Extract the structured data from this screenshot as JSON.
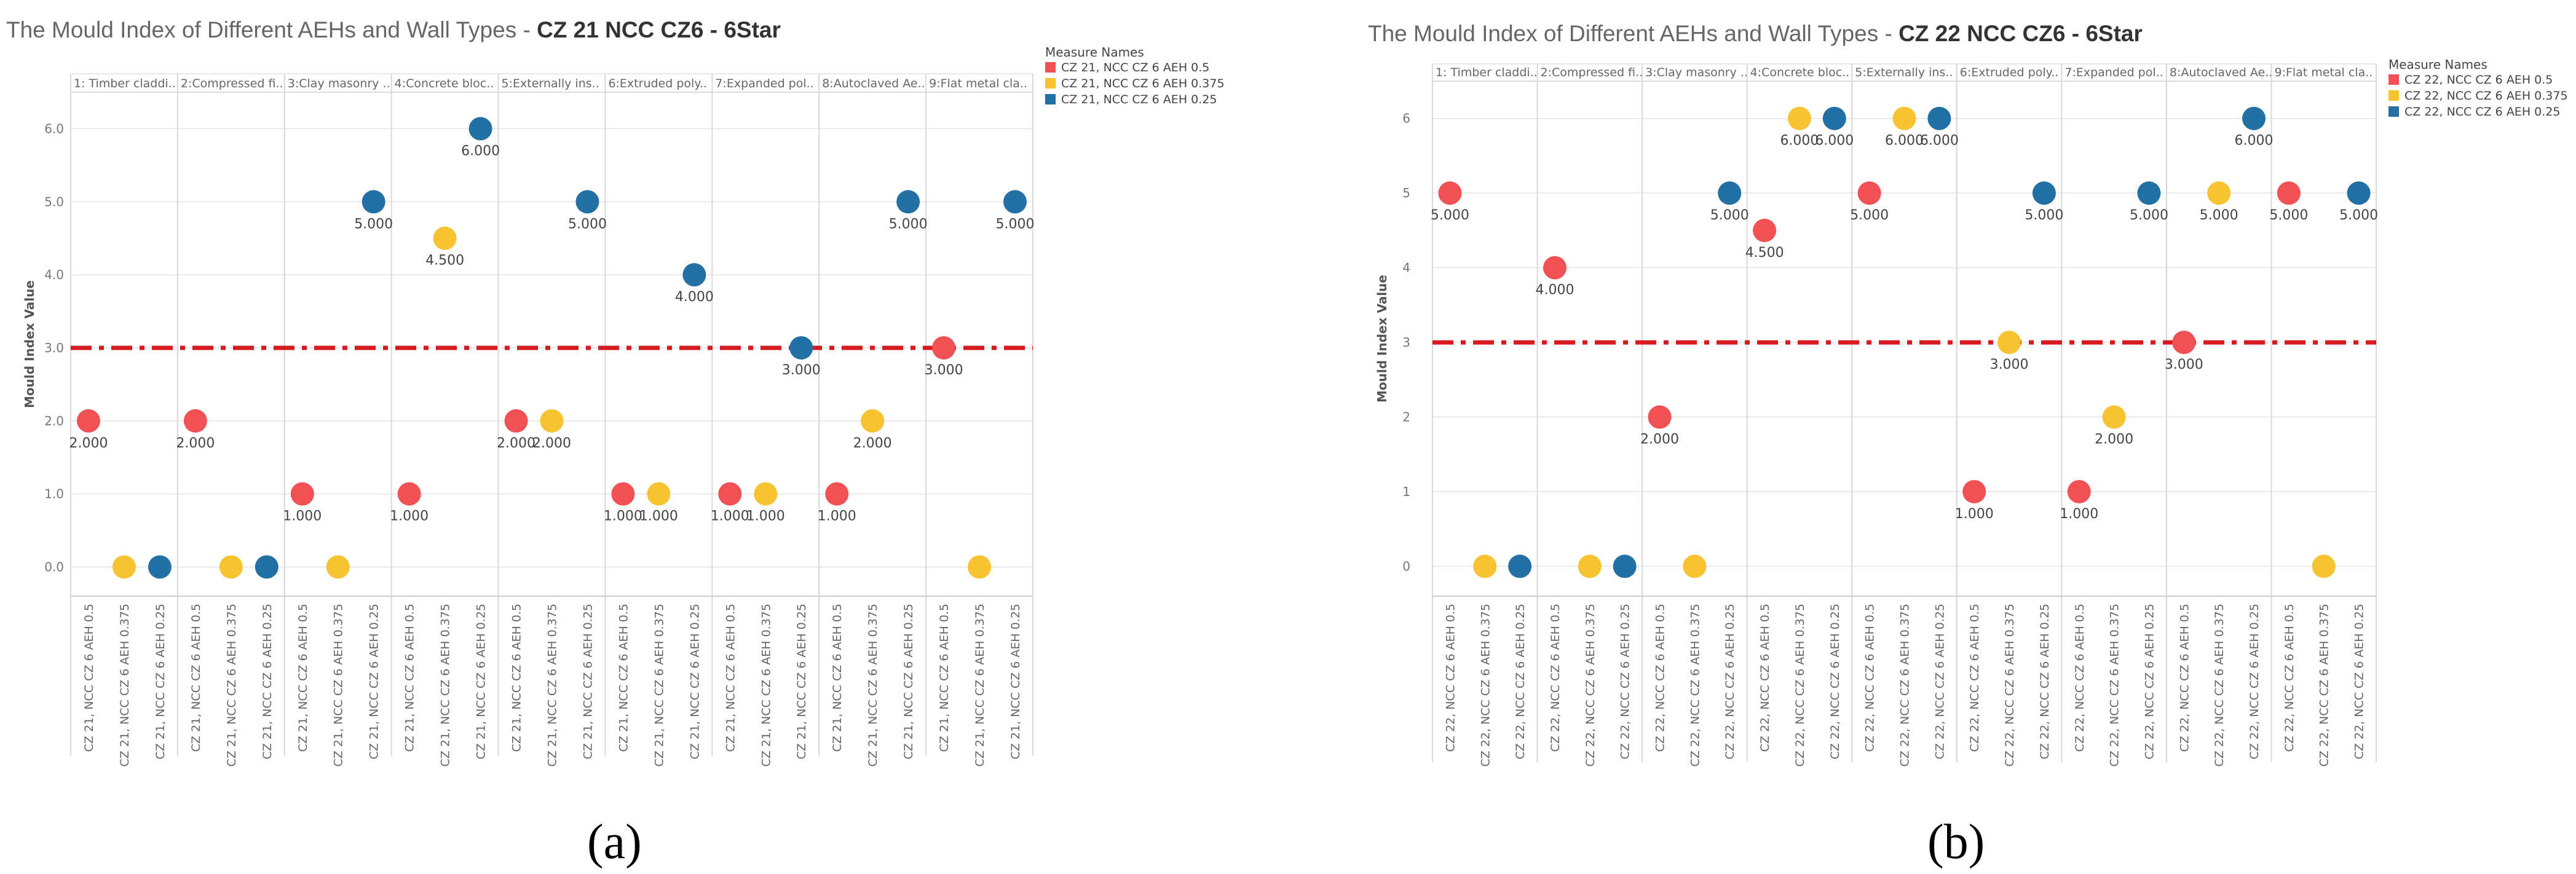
{
  "chart_data": [
    {
      "type": "scatter",
      "title_prefix": "The Mould Index of Different AEHs and Wall Types - ",
      "title_bold": "CZ 21 NCC CZ6 - 6Star",
      "ylabel": "Mould Index Value",
      "ylim": [
        -0.4,
        6.5
      ],
      "yticks": [
        "0.0",
        "1.0",
        "2.0",
        "3.0",
        "4.0",
        "5.0",
        "6.0"
      ],
      "threshold": 3.0,
      "legend_title": "Measure Names",
      "legend": [
        "CZ 21, NCC CZ 6 AEH 0.5",
        "CZ 21, NCC CZ 6 AEH 0.375",
        "CZ 21, NCC CZ 6 AEH 0.25"
      ],
      "groups": [
        "1: Timber claddi..",
        "2:Compressed fi..",
        "3:Clay masonry ..",
        "4:Concrete bloc..",
        "5:Externally ins..",
        "6:Extruded poly..",
        "7:Expanded pol..",
        "8:Autoclaved Ae..",
        "9:Flat metal cla.."
      ],
      "xlabels": [
        "CZ 21, NCC CZ 6 AEH 0.5",
        "CZ 21, NCC CZ 6 AEH 0.375",
        "CZ 21, NCC CZ 6 AEH 0.25"
      ],
      "values": [
        [
          2,
          0,
          0
        ],
        [
          2,
          0,
          0
        ],
        [
          1,
          0,
          5
        ],
        [
          1,
          4.5,
          6
        ],
        [
          2,
          2,
          5
        ],
        [
          1,
          1,
          4
        ],
        [
          1,
          1,
          3
        ],
        [
          1,
          2,
          5
        ],
        [
          3,
          0,
          5
        ]
      ],
      "labels": [
        [
          "2.000",
          "",
          ""
        ],
        [
          "2.000",
          "",
          ""
        ],
        [
          "1.000",
          "",
          "5.000"
        ],
        [
          "1.000",
          "4.500",
          "6.000"
        ],
        [
          "2.000",
          "2.000",
          "5.000"
        ],
        [
          "1.000",
          "1.000",
          "4.000"
        ],
        [
          "1.000",
          "1.000",
          "3.000"
        ],
        [
          "1.000",
          "2.000",
          "5.000"
        ],
        [
          "3.000",
          "",
          "5.000"
        ]
      ],
      "caption": "(a)"
    },
    {
      "type": "scatter",
      "title_prefix": "The Mould Index of Different AEHs and Wall Types - ",
      "title_bold": "CZ 22 NCC CZ6 - 6Star",
      "ylabel": "Mould Index Value",
      "ylim": [
        -0.4,
        6.5
      ],
      "yticks": [
        "0",
        "1",
        "2",
        "3",
        "4",
        "5",
        "6"
      ],
      "threshold": 3.0,
      "legend_title": "Measure Names",
      "legend": [
        "CZ 22, NCC CZ 6 AEH 0.5",
        "CZ 22, NCC CZ 6 AEH 0.375",
        "CZ 22, NCC CZ 6 AEH 0.25"
      ],
      "groups": [
        "1: Timber claddi..",
        "2:Compressed fi..",
        "3:Clay masonry ..",
        "4:Concrete bloc..",
        "5:Externally ins..",
        "6:Extruded poly..",
        "7:Expanded pol..",
        "8:Autoclaved Ae..",
        "9:Flat metal cla.."
      ],
      "xlabels": [
        "CZ 22, NCC CZ 6 AEH 0.5",
        "CZ 22, NCC CZ 6 AEH 0.375",
        "CZ 22, NCC CZ 6 AEH 0.25"
      ],
      "values": [
        [
          5,
          0,
          0
        ],
        [
          4,
          0,
          0
        ],
        [
          2,
          0,
          5
        ],
        [
          4.5,
          6,
          6
        ],
        [
          5,
          6,
          6
        ],
        [
          1,
          3,
          5
        ],
        [
          1,
          2,
          5
        ],
        [
          3,
          5,
          6
        ],
        [
          5,
          0,
          5
        ]
      ],
      "labels": [
        [
          "5.000",
          "",
          ""
        ],
        [
          "4.000",
          "",
          ""
        ],
        [
          "2.000",
          "",
          "5.000"
        ],
        [
          "4.500",
          "6.000",
          "6.000"
        ],
        [
          "5.000",
          "6.000",
          "6.000"
        ],
        [
          "1.000",
          "3.000",
          "5.000"
        ],
        [
          "1.000",
          "2.000",
          "5.000"
        ],
        [
          "3.000",
          "5.000",
          "6.000"
        ],
        [
          "5.000",
          "",
          "5.000"
        ]
      ],
      "caption": "(b)"
    }
  ],
  "colors": {
    "series": [
      "#f15055",
      "#f8c331",
      "#2370a4"
    ],
    "threshold": "#d71920",
    "grid": "#e4e4e4",
    "axis_text": "#777777"
  }
}
